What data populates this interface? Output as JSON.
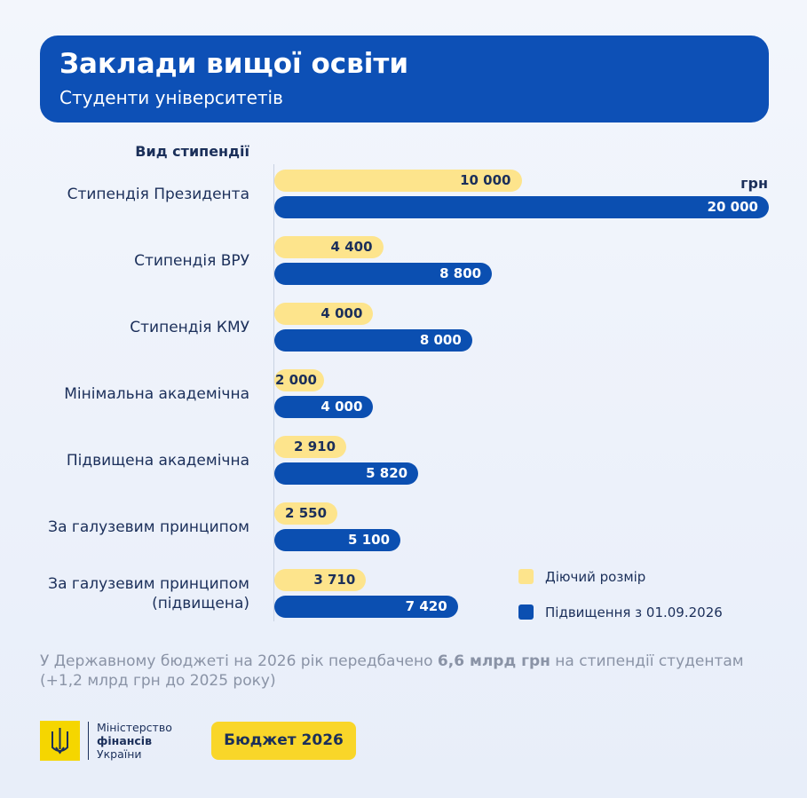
{
  "chart_data": {
    "type": "bar",
    "orientation": "horizontal",
    "title": "Заклади вищої освіти",
    "subtitle": "Студенти університетів",
    "category_axis_label": "Вид стипендії",
    "unit_label": "грн",
    "categories": [
      "Стипендія Президента",
      "Стипендія ВРУ",
      "Стипендія КМУ",
      "Мінімальна академічна",
      "Підвищена академічна",
      "За галузевим принципом",
      "За галузевим принципом\n(підвищена)"
    ],
    "series": [
      {
        "name": "Діючий розмір",
        "color": "#fde48c",
        "values": [
          10000,
          4400,
          4000,
          2000,
          2910,
          2550,
          3710
        ],
        "value_labels": [
          "10 000",
          "4 400",
          "4 000",
          "2 000",
          "2 910",
          "2 550",
          "3 710"
        ]
      },
      {
        "name": "Підвищення з 01.09.2026",
        "color": "#0b4fb1",
        "values": [
          20000,
          8800,
          8000,
          4000,
          5820,
          5100,
          7420
        ],
        "value_labels": [
          "20 000",
          "8 800",
          "8 000",
          "4 000",
          "5 820",
          "5 100",
          "7 420"
        ]
      }
    ],
    "legend": "bottom-right"
  },
  "footer": {
    "note": {
      "before": "У Державному бюджеті на 2026 рік передбачено ",
      "bold": "6,6 млрд грн",
      "after": " на стипендії студентам (+1,2 млрд грн до 2025 року)"
    },
    "logo": {
      "line1": "Міністерство",
      "line2": "фінансів",
      "line3": "України"
    },
    "button": "Бюджет 2026"
  }
}
